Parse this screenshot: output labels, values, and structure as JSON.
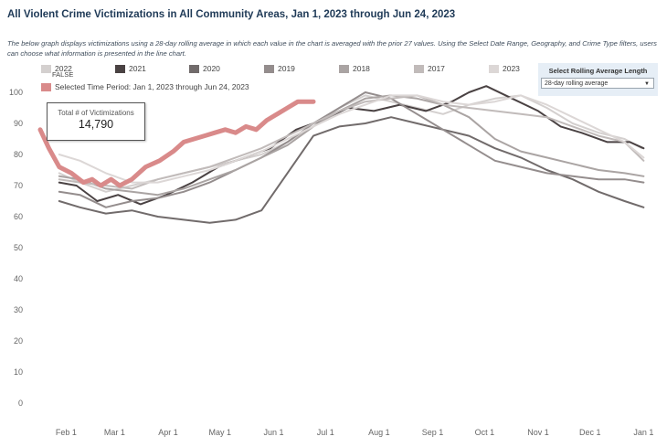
{
  "page": {
    "title": "All Violent Crime Victimizations in All Community Areas, Jan 1, 2023 through Jun 24, 2023",
    "description": "The below graph displays victimizations using a 28-day rolling average in which each value in the chart is averaged with the prior 27 values. Using the Select Date Range, Geography, and Crime Type filters, users can choose what information is presented in the line chart."
  },
  "legend": {
    "items": [
      {
        "label": "2022",
        "color": "#d4d0cf"
      },
      {
        "label": "2021",
        "color": "#4a4243"
      },
      {
        "label": "2020",
        "color": "#716b6b"
      },
      {
        "label": "2019",
        "color": "#948d8d"
      },
      {
        "label": "2018",
        "color": "#aaa4a3"
      },
      {
        "label": "2017",
        "color": "#c1bbba"
      },
      {
        "label": "2023",
        "color": "#dcd7d6"
      }
    ],
    "false_label": "FALSE",
    "selected_label": "Selected Time Period: Jan 1, 2023 through Jun 24, 2023",
    "selected_color": "#d98a8a"
  },
  "control": {
    "label": "Select Rolling Average Length",
    "value": "28-day rolling average"
  },
  "total": {
    "label": "Total # of Victimizations",
    "value": "14,790"
  },
  "chart_data": {
    "type": "line",
    "title": "All Violent Crime Victimizations in All Community Areas, Jan 1, 2023 through Jun 24, 2023",
    "xlabel": "",
    "ylabel": "",
    "ylim": [
      0,
      100
    ],
    "yticks": [
      0,
      10,
      20,
      30,
      40,
      50,
      60,
      70,
      80,
      90,
      100
    ],
    "xdomain_days": [
      17,
      370
    ],
    "xticks": [
      {
        "label": "Feb 1",
        "day": 32
      },
      {
        "label": "Mar 1",
        "day": 60
      },
      {
        "label": "Apr 1",
        "day": 91
      },
      {
        "label": "May 1",
        "day": 121
      },
      {
        "label": "Jun 1",
        "day": 152
      },
      {
        "label": "Jul 1",
        "day": 182
      },
      {
        "label": "Aug 1",
        "day": 213
      },
      {
        "label": "Sep 1",
        "day": 244
      },
      {
        "label": "Oct 1",
        "day": 274
      },
      {
        "label": "Nov 1",
        "day": 305
      },
      {
        "label": "Dec 1",
        "day": 335
      },
      {
        "label": "Jan 1",
        "day": 366
      }
    ],
    "series": [
      {
        "name": "2022",
        "color": "#d4d0cf",
        "width": 2,
        "x": [
          28,
          40,
          55,
          70,
          85,
          100,
          115,
          130,
          145,
          160,
          175,
          190,
          205,
          220,
          235,
          250,
          265,
          280,
          295,
          310,
          325,
          340,
          355,
          365
        ],
        "y": [
          74,
          71,
          68,
          70,
          72,
          74,
          76,
          78,
          80,
          84,
          89,
          95,
          99,
          97,
          95,
          93,
          96,
          98,
          99,
          95,
          90,
          87,
          85,
          82
        ]
      },
      {
        "name": "2021",
        "color": "#4a4243",
        "width": 2,
        "x": [
          28,
          38,
          50,
          62,
          75,
          90,
          105,
          120,
          135,
          150,
          165,
          180,
          195,
          210,
          225,
          240,
          255,
          265,
          275,
          290,
          305,
          318,
          330,
          345,
          358,
          366
        ],
        "y": [
          71,
          70,
          65,
          67,
          64,
          67,
          71,
          76,
          79,
          82,
          88,
          91,
          95,
          94,
          96,
          94,
          97,
          100,
          102,
          98,
          94,
          89,
          87,
          84,
          84,
          82
        ]
      },
      {
        "name": "2020",
        "color": "#716b6b",
        "width": 2,
        "x": [
          28,
          40,
          55,
          70,
          85,
          100,
          115,
          130,
          145,
          160,
          175,
          190,
          205,
          220,
          235,
          250,
          265,
          280,
          295,
          310,
          325,
          340,
          355,
          366
        ],
        "y": [
          65,
          63,
          61,
          62,
          60,
          59,
          58,
          59,
          62,
          74,
          86,
          89,
          90,
          92,
          90,
          88,
          86,
          82,
          79,
          75,
          72,
          68,
          65,
          63
        ]
      },
      {
        "name": "2019",
        "color": "#948d8d",
        "width": 2,
        "x": [
          28,
          40,
          55,
          70,
          85,
          100,
          115,
          130,
          145,
          160,
          175,
          190,
          205,
          220,
          235,
          250,
          265,
          280,
          295,
          310,
          325,
          340,
          355,
          366
        ],
        "y": [
          68,
          67,
          63,
          65,
          66,
          68,
          71,
          75,
          79,
          84,
          90,
          95,
          100,
          98,
          93,
          88,
          83,
          78,
          76,
          74,
          73,
          72,
          72,
          71
        ]
      },
      {
        "name": "2018",
        "color": "#aaa4a3",
        "width": 2,
        "x": [
          28,
          40,
          55,
          70,
          85,
          100,
          115,
          130,
          145,
          160,
          175,
          190,
          205,
          220,
          235,
          250,
          265,
          280,
          295,
          310,
          325,
          340,
          355,
          366
        ],
        "y": [
          73,
          72,
          69,
          68,
          67,
          69,
          72,
          75,
          79,
          83,
          89,
          94,
          98,
          99,
          98,
          96,
          92,
          85,
          81,
          79,
          77,
          75,
          74,
          73
        ]
      },
      {
        "name": "2017",
        "color": "#c1bbba",
        "width": 2,
        "x": [
          28,
          40,
          55,
          70,
          85,
          100,
          115,
          130,
          145,
          160,
          175,
          190,
          205,
          220,
          235,
          250,
          265,
          280,
          295,
          310,
          325,
          340,
          355,
          366
        ],
        "y": [
          72,
          71,
          70,
          69,
          72,
          74,
          76,
          79,
          82,
          86,
          90,
          94,
          97,
          98,
          99,
          96,
          95,
          94,
          93,
          92,
          89,
          86,
          84,
          78
        ]
      },
      {
        "name": "2023",
        "color": "#dcd7d6",
        "width": 2,
        "x": [
          28,
          40,
          55,
          70,
          85,
          100,
          115,
          130,
          145,
          160,
          175,
          190,
          205,
          220,
          235,
          250,
          265,
          280,
          295,
          310,
          325,
          340,
          355,
          366
        ],
        "y": [
          80,
          78,
          74,
          71,
          71,
          73,
          75,
          78,
          81,
          85,
          89,
          93,
          96,
          99,
          99,
          97,
          96,
          97,
          99,
          96,
          92,
          88,
          84,
          79
        ]
      },
      {
        "name": "Selected Time Period: Jan 1, 2023 through Jun 24, 2023",
        "color": "#d98a8a",
        "width": 5,
        "x": [
          17,
          22,
          28,
          35,
          42,
          47,
          52,
          58,
          63,
          70,
          78,
          86,
          94,
          100,
          106,
          112,
          118,
          124,
          130,
          136,
          142,
          148,
          154,
          160,
          166,
          171,
          175
        ],
        "y": [
          88,
          82,
          76,
          74,
          71,
          72,
          70,
          72,
          70,
          72,
          76,
          78,
          81,
          84,
          85,
          86,
          87,
          88,
          87,
          89,
          88,
          91,
          93,
          95,
          97,
          97,
          97
        ]
      }
    ]
  }
}
